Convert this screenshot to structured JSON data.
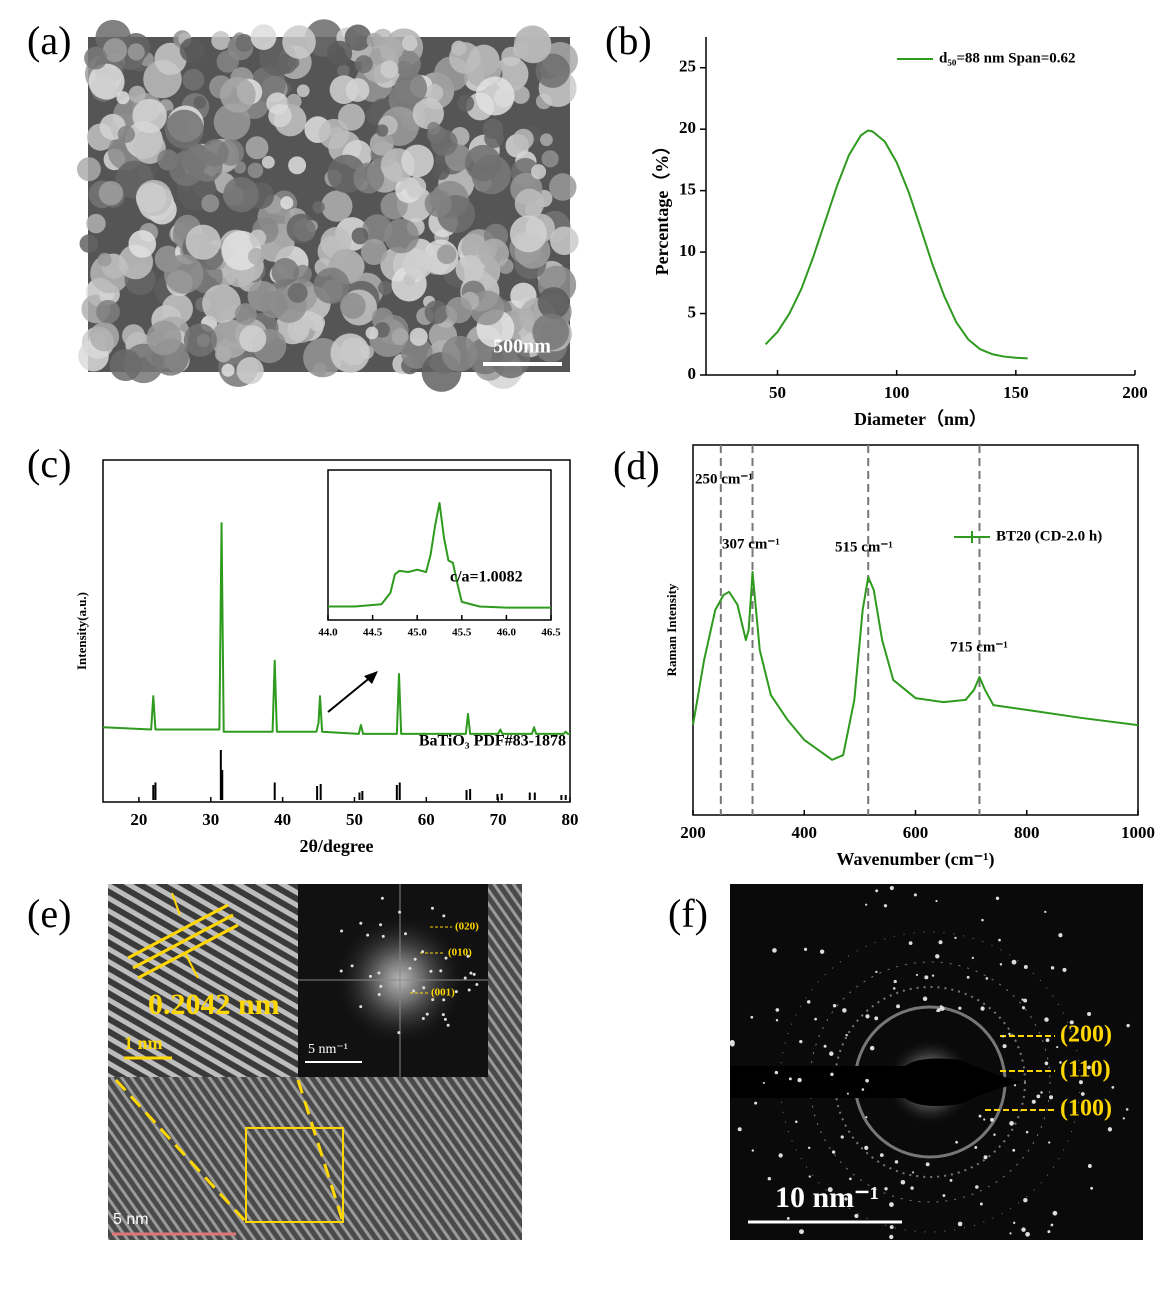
{
  "panel_labels": [
    "(a)",
    "(b)",
    "(c)",
    "(d)",
    "(e)",
    "(f)"
  ],
  "sem_image": {
    "scale_bar": "500nm"
  },
  "hrtem_image": {
    "scale_bar": "5 nm",
    "inset_scale_bar": "1 nm",
    "d_spacing": "0.2042 nm",
    "fft_scale_bar": "5 nm⁻¹",
    "fft_planes": [
      "(020)",
      "(010)",
      "(001)"
    ]
  },
  "saed_image": {
    "scale_bar": "10 nm⁻¹",
    "rings": [
      "(200)",
      "(110)",
      "(100)"
    ]
  },
  "chart_data": [
    {
      "type": "line",
      "xlabel": "Diameter（nm）",
      "ylabel": "Percentage（%）",
      "xlim": [
        20,
        200
      ],
      "xticks": [
        50,
        100,
        150,
        200
      ],
      "ylim": [
        0,
        27.5
      ],
      "yticks": [
        0,
        5,
        10,
        15,
        20,
        25
      ],
      "legend": "upper right",
      "x": [
        45,
        50,
        55,
        60,
        65,
        70,
        75,
        80,
        85,
        88,
        90,
        95,
        100,
        105,
        110,
        115,
        120,
        125,
        130,
        135,
        140,
        145,
        150,
        155
      ],
      "series": [
        {
          "name": "d₅₀=88 nm Span=0.62",
          "color": "#2e9a1e",
          "values": [
            2.5,
            3.5,
            5.0,
            7.0,
            9.6,
            12.5,
            15.4,
            17.9,
            19.5,
            19.9,
            19.8,
            19.0,
            17.3,
            14.9,
            12.0,
            9.0,
            6.4,
            4.3,
            2.9,
            2.1,
            1.7,
            1.5,
            1.4,
            1.35
          ]
        }
      ]
    },
    {
      "type": "line",
      "xlabel": "2θ/degree",
      "ylabel": "Intensity(a.u.)",
      "xlim": [
        15,
        80
      ],
      "xticks": [
        20,
        30,
        40,
        50,
        60,
        70,
        80
      ],
      "ylim": [
        0,
        105
      ],
      "color": "#2e9a1e",
      "x": [
        15,
        21.7,
        22.0,
        22.3,
        31.2,
        31.5,
        31.8,
        38.6,
        38.9,
        39.2,
        44.7,
        45.0,
        45.2,
        45.5,
        50.6,
        50.9,
        51.2,
        55.9,
        56.2,
        56.5,
        65.5,
        65.8,
        66.1,
        70.0,
        70.3,
        70.6,
        74.7,
        75.0,
        75.3,
        79.1,
        79.4,
        79.7,
        80
      ],
      "values": [
        8,
        7,
        22,
        7,
        7,
        100,
        6,
        6,
        38,
        6,
        6,
        10,
        22,
        6,
        5,
        9,
        5,
        5,
        32,
        5,
        5,
        14,
        5,
        5,
        7,
        5,
        5,
        8,
        5,
        5,
        6,
        5,
        5
      ],
      "reference": {
        "name": "BaTiO₃ PDF#83-1878",
        "color": "#000000",
        "x": [
          22.0,
          22.3,
          31.4,
          31.6,
          38.9,
          44.8,
          45.3,
          50.7,
          51.1,
          55.9,
          56.3,
          65.6,
          66.1,
          69.9,
          70.5,
          74.4,
          75.1,
          78.8,
          79.4
        ],
        "values": [
          30,
          35,
          100,
          60,
          35,
          28,
          32,
          15,
          18,
          30,
          35,
          20,
          22,
          12,
          13,
          15,
          15,
          10,
          10
        ]
      }
    },
    {
      "type": "line",
      "annotation": "c/a=1.0082",
      "color": "#2e9a1e",
      "xlim": [
        44.0,
        46.5
      ],
      "xticks": [
        {
          "value": 44,
          "label": "44.0"
        },
        44.5,
        {
          "value": 45,
          "label": "45.0"
        },
        45.5,
        {
          "value": 46,
          "label": "46.0"
        },
        46.5
      ],
      "ylim": [
        0,
        120
      ],
      "x": [
        44.0,
        44.3,
        44.6,
        44.7,
        44.75,
        44.8,
        44.9,
        45.0,
        45.1,
        45.15,
        45.2,
        45.25,
        45.3,
        45.35,
        45.4,
        45.45,
        45.5,
        45.7,
        46.0,
        46.5
      ],
      "values": [
        10,
        10,
        12,
        22,
        38,
        41,
        40,
        42,
        40,
        55,
        80,
        100,
        70,
        50,
        48,
        30,
        14,
        10,
        9,
        9
      ]
    },
    {
      "type": "line",
      "xlabel": "Wavenumber (cm⁻¹)",
      "ylabel": "Raman Intensity",
      "xlim": [
        200,
        1000
      ],
      "xticks": [
        200,
        400,
        600,
        800,
        1000
      ],
      "ylim": [
        0,
        100
      ],
      "legend": "upper right",
      "annotations": [
        {
          "x": 250,
          "label": "250 cm⁻¹"
        },
        {
          "x": 307,
          "label": "307 cm⁻¹"
        },
        {
          "x": 515,
          "label": "515 cm⁻¹"
        },
        {
          "x": 715,
          "label": "715 cm⁻¹"
        }
      ],
      "x": [
        200,
        220,
        240,
        255,
        265,
        280,
        295,
        300,
        305,
        307,
        310,
        320,
        340,
        370,
        400,
        450,
        470,
        490,
        505,
        515,
        525,
        540,
        560,
        600,
        650,
        690,
        705,
        715,
        725,
        740,
        800,
        900,
        1000
      ],
      "series": [
        {
          "name": "BT20 (CD-2.0 h)",
          "color": "#2e9a1e",
          "values": [
            24.3,
            41.9,
            55.4,
            59.5,
            60.3,
            56.8,
            47.3,
            50.0,
            60.8,
            65.7,
            60.8,
            44.6,
            32.4,
            25.7,
            20.3,
            14.9,
            16.2,
            31.1,
            55.4,
            64.3,
            60.8,
            47.3,
            36.5,
            31.6,
            30.5,
            31.1,
            33.8,
            37.3,
            33.8,
            29.7,
            28.4,
            26.2,
            24.3
          ]
        }
      ]
    }
  ]
}
